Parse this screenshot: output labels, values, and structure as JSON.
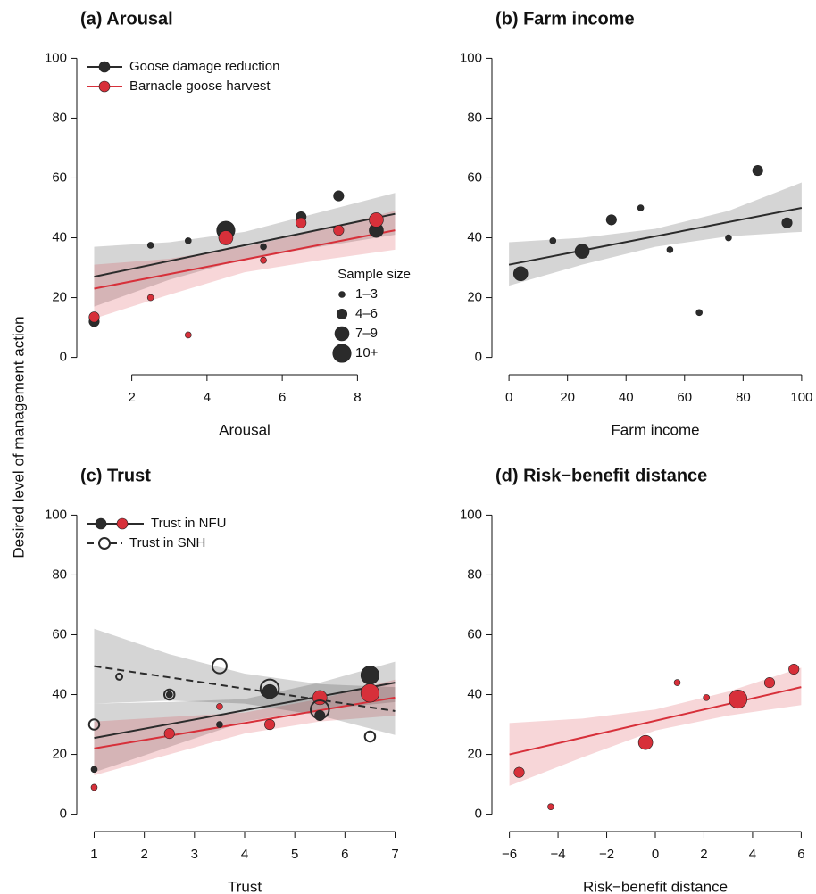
{
  "y_label": "Desired level of management action",
  "chart_data": [
    {
      "type": "scatter",
      "title": "(a) Arousal",
      "xlabel": "Arousal",
      "xlim": [
        0.68,
        9.32
      ],
      "xticks": [
        2,
        4,
        6,
        8
      ],
      "ylim": [
        -4,
        104
      ],
      "yticks": [
        0,
        20,
        40,
        60,
        80,
        100
      ],
      "legend": "topleft",
      "size_legend": {
        "title": "Sample size",
        "labels": [
          "1–3",
          "4–6",
          "7–9",
          "10+"
        ],
        "values": [
          2,
          5,
          8,
          11
        ]
      },
      "series": [
        {
          "name": "Goose damage reduction",
          "color": "#2b2b2b",
          "x": [
            1,
            2.5,
            3.5,
            4.5,
            5.5,
            6.5,
            7.5,
            8.5
          ],
          "values": [
            12,
            37.5,
            39,
            42.5,
            37,
            47,
            54,
            42.5
          ],
          "sizes": [
            5,
            2,
            2,
            11,
            2,
            5,
            5,
            8
          ],
          "fit": {
            "x": [
              1,
              9
            ],
            "values": [
              27,
              48
            ]
          },
          "band": {
            "x": [
              1,
              3,
              5,
              7,
              9
            ],
            "lower": [
              17,
              26,
              33,
              37,
              41
            ],
            "upper": [
              37,
              38.5,
              42,
              48.5,
              55
            ]
          }
        },
        {
          "name": "Barnacle goose harvest",
          "color": "#d7303a",
          "x": [
            1,
            2.5,
            3.5,
            4.5,
            5.5,
            6.5,
            7.5,
            8.5
          ],
          "values": [
            13.5,
            20,
            7.5,
            40,
            32.5,
            45,
            42.5,
            46
          ],
          "sizes": [
            5,
            2,
            2,
            8,
            2,
            5,
            5,
            8
          ],
          "fit": {
            "x": [
              1,
              9
            ],
            "values": [
              23,
              42.5
            ]
          },
          "band": {
            "x": [
              1,
              3,
              5,
              7,
              9
            ],
            "lower": [
              13,
              21,
              28.5,
              32.5,
              36
            ],
            "upper": [
              31,
              33,
              37,
              42.5,
              49
            ]
          }
        }
      ]
    },
    {
      "type": "scatter",
      "title": "(b) Farm income",
      "xlabel": "Farm income",
      "xlim": [
        -4,
        104
      ],
      "xticks": [
        0,
        20,
        40,
        60,
        80,
        100
      ],
      "ylim": [
        -4,
        104
      ],
      "yticks": [
        0,
        20,
        40,
        60,
        80,
        100
      ],
      "series": [
        {
          "color": "#2b2b2b",
          "x": [
            4,
            15,
            25,
            35,
            45,
            55,
            65,
            75,
            85,
            95
          ],
          "values": [
            28,
            39,
            35.5,
            46,
            50,
            36,
            15,
            40,
            62.5,
            45
          ],
          "sizes": [
            8,
            2,
            8,
            5,
            2,
            2,
            2,
            2,
            5,
            5
          ],
          "fit": {
            "x": [
              0,
              100
            ],
            "values": [
              31,
              50
            ]
          },
          "band": {
            "x": [
              0,
              25,
              50,
              75,
              100
            ],
            "lower": [
              24,
              31,
              37,
              40.5,
              42
            ],
            "upper": [
              38.5,
              40,
              43,
              49,
              58.5
            ]
          }
        }
      ]
    },
    {
      "type": "scatter",
      "title": "(c) Trust",
      "xlabel": "Trust",
      "xlim": [
        0.76,
        7.24
      ],
      "xticks": [
        1,
        2,
        3,
        4,
        5,
        6,
        7
      ],
      "ylim": [
        -4,
        104
      ],
      "yticks": [
        0,
        20,
        40,
        60,
        80,
        100
      ],
      "legend": "topleft",
      "series": [
        {
          "name": "Trust in NFU",
          "color": "#2b2b2b",
          "x": [
            1,
            2.5,
            3.5,
            4.5,
            5.5,
            6.5
          ],
          "values": [
            15,
            40,
            30,
            41,
            33,
            46.5
          ],
          "sizes": [
            2,
            2,
            2,
            8,
            5,
            11
          ],
          "fit": {
            "x": [
              1,
              7
            ],
            "values": [
              25.5,
              44
            ]
          },
          "band": {
            "x": [
              1,
              2.5,
              4,
              5.5,
              7
            ],
            "lower": [
              14,
              22.5,
              31,
              35,
              37.5
            ],
            "upper": [
              37,
              37.5,
              38.5,
              44,
              51
            ]
          }
        },
        {
          "color": "#d7303a",
          "x": [
            1,
            2.5,
            3.5,
            4.5,
            5.5,
            6.5
          ],
          "values": [
            9,
            27,
            36,
            30,
            39,
            40.5
          ],
          "sizes": [
            2,
            5,
            2,
            5,
            8,
            11
          ],
          "fit": {
            "x": [
              1,
              7
            ],
            "values": [
              22,
              39
            ]
          },
          "band": {
            "x": [
              1,
              2.5,
              4,
              5.5,
              7
            ],
            "lower": [
              13,
              20,
              27,
              31,
              33
            ],
            "upper": [
              31,
              32.5,
              34,
              38.5,
              45
            ]
          }
        },
        {
          "name": "Trust in SNH",
          "color": "#2b2b2b",
          "open": true,
          "dash": true,
          "x": [
            1,
            1.5,
            2.5,
            3.5,
            4.5,
            5.5,
            6.5
          ],
          "values": [
            30,
            46,
            40,
            49.5,
            42,
            35,
            26
          ],
          "sizes": [
            5,
            2,
            5,
            8,
            11,
            11,
            5
          ],
          "fit": {
            "x": [
              1,
              7
            ],
            "values": [
              49.5,
              34.5
            ]
          },
          "band": {
            "x": [
              1,
              2.5,
              4,
              5.5,
              7
            ],
            "lower": [
              37,
              38,
              37,
              33,
              26.5
            ],
            "upper": [
              62,
              53.5,
              47,
              43.5,
              42.5
            ]
          }
        }
      ]
    },
    {
      "type": "scatter",
      "title": "(d) Risk−benefit distance",
      "xlabel": "Risk−benefit distance",
      "xlim": [
        -6.5,
        6.5
      ],
      "xticks": [
        {
          "value": -6,
          "label": "−6"
        },
        {
          "value": -4,
          "label": "−4"
        },
        {
          "value": -2,
          "label": "−2"
        },
        0,
        2,
        4,
        6
      ],
      "ylim": [
        -4,
        104
      ],
      "yticks": [
        0,
        20,
        40,
        60,
        80,
        100
      ],
      "series": [
        {
          "color": "#d7303a",
          "x": [
            -5.6,
            -4.3,
            -0.4,
            0.9,
            2.1,
            3.4,
            4.7,
            5.7
          ],
          "values": [
            14,
            2.5,
            24,
            44,
            39,
            38.5,
            44,
            48.5
          ],
          "sizes": [
            5,
            2,
            8,
            2,
            2,
            11,
            5,
            5
          ],
          "fit": {
            "x": [
              -6,
              6
            ],
            "values": [
              20,
              42.5
            ]
          },
          "band": {
            "x": [
              -6,
              -3,
              0,
              3,
              6
            ],
            "lower": [
              9.5,
              19,
              28,
              33,
              36.5
            ],
            "upper": [
              30.5,
              32,
              35,
              41,
              49
            ]
          }
        }
      ]
    }
  ]
}
